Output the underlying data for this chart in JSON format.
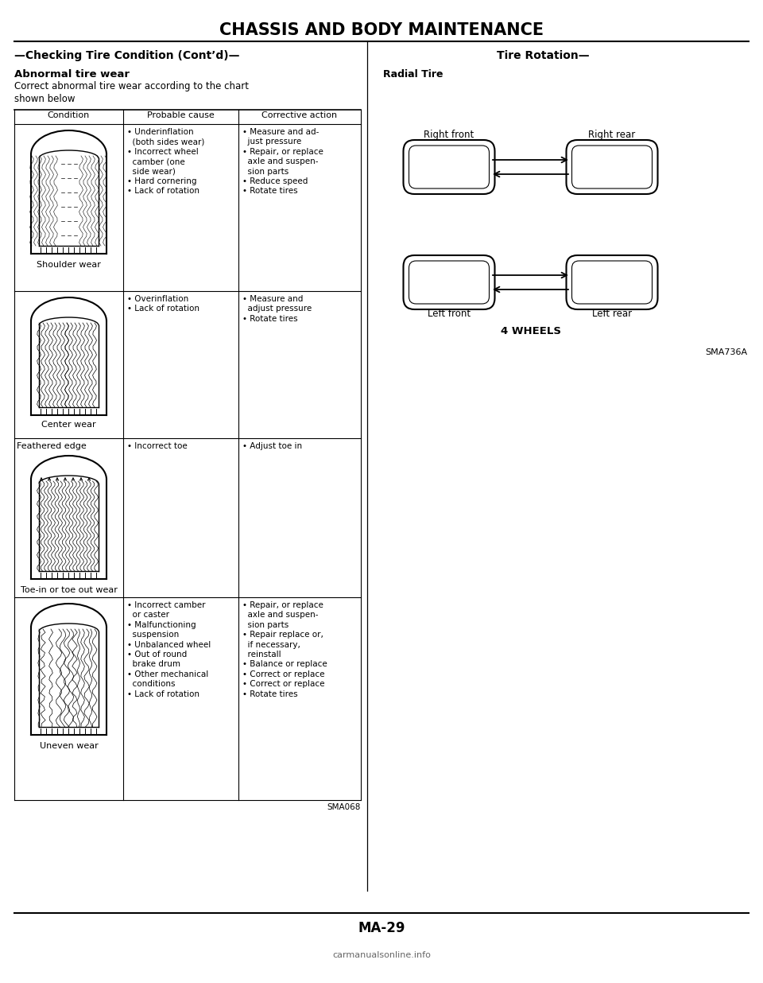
{
  "title": "CHASSIS AND BODY MAINTENANCE",
  "left_section_title": "—Checking Tire Condition (Cont’d)—",
  "right_section_title": "Tire Rotation—",
  "subtitle": "Abnormal tire wear",
  "intro_text": "Correct abnormal tire wear according to the chart\nshown below",
  "col_headers": [
    "Condition",
    "Probable cause",
    "Corrective action"
  ],
  "rows": [
    {
      "condition_label": "Shoulder wear",
      "probable_cause": "• Underinflation\n  (both sides wear)\n• Incorrect wheel\n  camber (one\n  side wear)\n• Hard cornering\n• Lack of rotation",
      "corrective_action": "• Measure and ad-\n  just pressure\n• Repair, or replace\n  axle and suspen-\n  sion parts\n• Reduce speed\n• Rotate tires"
    },
    {
      "condition_label": "Center wear",
      "probable_cause": "• Overinflation\n• Lack of rotation",
      "corrective_action": "• Measure and\n  adjust pressure\n• Rotate tires"
    },
    {
      "condition_label": "Toe-in or toe out wear",
      "feathered_label": "Feathered edge",
      "probable_cause": "• Incorrect toe",
      "corrective_action": "• Adjust toe in"
    },
    {
      "condition_label": "Uneven wear",
      "probable_cause": "• Incorrect camber\n  or caster\n• Malfunctioning\n  suspension\n• Unbalanced wheel\n• Out of round\n  brake drum\n• Other mechanical\n  conditions\n• Lack of rotation",
      "corrective_action": "• Repair, or replace\n  axle and suspen-\n  sion parts\n• Repair replace or,\n  if necessary,\n  reinstall\n• Balance or replace\n• Correct or replace\n• Correct or replace\n• Rotate tires"
    }
  ],
  "sma068": "SMA068",
  "radial_title": "Radial Tire",
  "wheel_labels": [
    "Right front",
    "Right rear",
    "Left front",
    "Left rear"
  ],
  "wheels_label": "4 WHEELS",
  "sma736a": "SMA736A",
  "page_number": "MA-29",
  "watermark": "carmanualsonline.info",
  "bg_color": "#ffffff",
  "text_color": "#000000"
}
